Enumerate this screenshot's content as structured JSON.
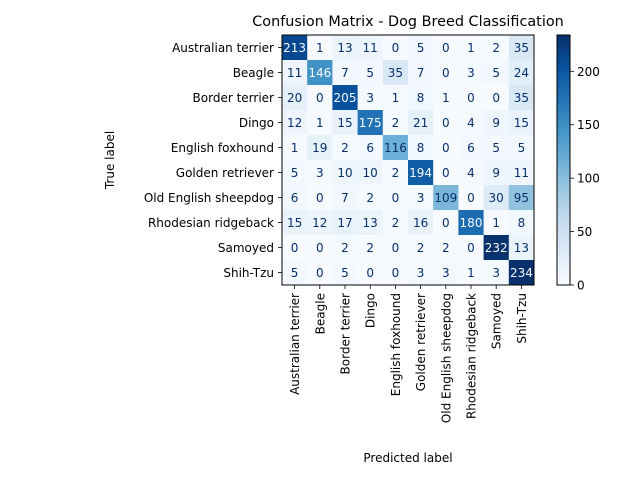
{
  "chart_data": {
    "type": "heatmap",
    "title": "Confusion Matrix - Dog Breed Classification",
    "xlabel": "Predicted label",
    "ylabel": "True label",
    "labels": [
      "Australian terrier",
      "Beagle",
      "Border terrier",
      "Dingo",
      "English foxhound",
      "Golden retriever",
      "Old English sheepdog",
      "Rhodesian ridgeback",
      "Samoyed",
      "Shih-Tzu"
    ],
    "matrix": [
      [
        213,
        1,
        13,
        11,
        0,
        5,
        0,
        1,
        2,
        35
      ],
      [
        11,
        146,
        7,
        5,
        35,
        7,
        0,
        3,
        5,
        24
      ],
      [
        20,
        0,
        205,
        3,
        1,
        8,
        1,
        0,
        0,
        35
      ],
      [
        12,
        1,
        15,
        175,
        2,
        21,
        0,
        4,
        9,
        15
      ],
      [
        1,
        19,
        2,
        6,
        116,
        8,
        0,
        6,
        5,
        5
      ],
      [
        5,
        3,
        10,
        10,
        2,
        194,
        0,
        4,
        9,
        11
      ],
      [
        6,
        0,
        7,
        2,
        0,
        3,
        109,
        0,
        30,
        95
      ],
      [
        15,
        12,
        17,
        13,
        2,
        16,
        0,
        180,
        1,
        8
      ],
      [
        0,
        0,
        2,
        2,
        0,
        2,
        2,
        0,
        232,
        13
      ],
      [
        5,
        0,
        5,
        0,
        0,
        3,
        3,
        1,
        3,
        234
      ]
    ],
    "colorbar": {
      "min": 0,
      "max": 234,
      "ticks": [
        0,
        50,
        100,
        150,
        200
      ]
    },
    "colormap": "Blues"
  }
}
